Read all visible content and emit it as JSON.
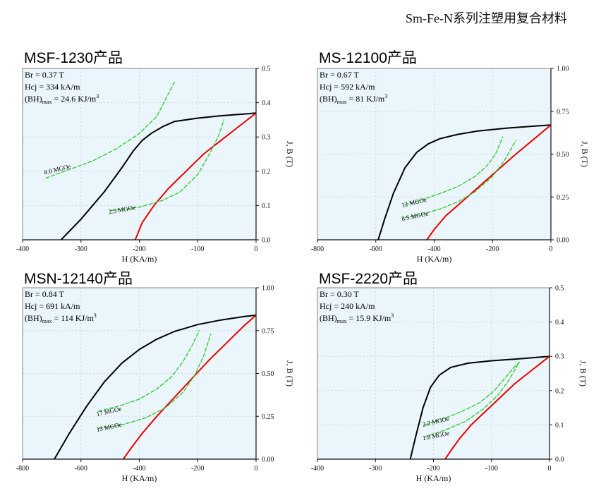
{
  "page_title": "Sm-Fe-N系列注塑用复合材料",
  "chart_data": [
    {
      "type": "line",
      "title": "MSF-1230产品",
      "xlabel": "H (KA/m)",
      "ylabel": "J, B (T)",
      "xlim": [
        -400,
        0
      ],
      "ylim": [
        0,
        0.5
      ],
      "xticks": [
        "-400",
        "-300",
        "-200",
        "-100",
        "0"
      ],
      "yticks": [
        "0.0",
        "0.1",
        "0.2",
        "0.3",
        "0.4",
        "0.5"
      ],
      "info": {
        "br": "Br = 0.37 T",
        "hcj": "Hcj = 334 kA/m",
        "bh_prefix": "(BH)",
        "bh_sub": "max",
        "bh_value": " = 24.6 KJ/m",
        "bh_sup": "3"
      },
      "series": [
        {
          "role": "J",
          "color": "#000000",
          "dashed": false,
          "x": [
            -334,
            -300,
            -260,
            -230,
            -210,
            -195,
            -180,
            -160,
            -140,
            -100,
            -60,
            -20,
            0
          ],
          "y": [
            0,
            0.06,
            0.14,
            0.21,
            0.26,
            0.29,
            0.31,
            0.33,
            0.345,
            0.355,
            0.362,
            0.367,
            0.37
          ]
        },
        {
          "role": "B",
          "color": "#ee0000",
          "dashed": false,
          "x": [
            -207,
            -195,
            -175,
            -150,
            -120,
            -90,
            -60,
            -30,
            0
          ],
          "y": [
            0,
            0.05,
            0.1,
            0.15,
            0.2,
            0.25,
            0.29,
            0.33,
            0.37
          ]
        },
        {
          "role": "iso",
          "label": "8.0 MGOe",
          "label_at": [
            -362,
            0.19
          ],
          "label_angle": -14,
          "color": "#33cc33",
          "dashed": true,
          "x": [
            -360,
            -320,
            -280,
            -240,
            -200,
            -170,
            -140
          ],
          "y": [
            0.18,
            0.205,
            0.23,
            0.265,
            0.31,
            0.36,
            0.46
          ]
        },
        {
          "role": "iso",
          "label": "2.5 MGOe",
          "label_at": [
            -252,
            0.075
          ],
          "label_angle": -10,
          "color": "#33cc33",
          "dashed": true,
          "x": [
            -250,
            -200,
            -160,
            -130,
            -100,
            -80,
            -65,
            -55
          ],
          "y": [
            0.085,
            0.095,
            0.115,
            0.14,
            0.19,
            0.25,
            0.3,
            0.35
          ]
        }
      ]
    },
    {
      "type": "line",
      "title": "MS-12100产品",
      "xlabel": "H (KA/m)",
      "ylabel": "J, B (T)",
      "xlim": [
        -800,
        0
      ],
      "ylim": [
        0,
        1.0
      ],
      "xticks": [
        "-800",
        "-600",
        "-400",
        "-200",
        "0"
      ],
      "yticks": [
        "0.00",
        "0.25",
        "0.50",
        "0.75",
        "1.00"
      ],
      "info": {
        "br": "Br = 0.67 T",
        "hcj": "Hcj = 592 kA/m",
        "bh_prefix": "(BH)",
        "bh_sub": "max",
        "bh_value": " = 81 KJ/m",
        "bh_sup": "3"
      },
      "series": [
        {
          "role": "J",
          "color": "#000000",
          "dashed": false,
          "x": [
            -592,
            -570,
            -540,
            -500,
            -460,
            -420,
            -380,
            -320,
            -250,
            -150,
            -50,
            0
          ],
          "y": [
            0,
            0.12,
            0.27,
            0.42,
            0.51,
            0.56,
            0.59,
            0.615,
            0.635,
            0.652,
            0.664,
            0.67
          ]
        },
        {
          "role": "B",
          "color": "#ee0000",
          "dashed": false,
          "x": [
            -425,
            -400,
            -360,
            -300,
            -240,
            -180,
            -120,
            -60,
            0
          ],
          "y": [
            0,
            0.06,
            0.14,
            0.23,
            0.32,
            0.41,
            0.5,
            0.585,
            0.67
          ]
        },
        {
          "role": "iso",
          "label": "12 MGOe",
          "label_at": [
            -510,
            0.19
          ],
          "label_angle": -13,
          "color": "#33cc33",
          "dashed": true,
          "x": [
            -500,
            -440,
            -380,
            -320,
            -260,
            -220,
            -190,
            -165
          ],
          "y": [
            0.205,
            0.235,
            0.27,
            0.31,
            0.37,
            0.43,
            0.5,
            0.6
          ]
        },
        {
          "role": "iso",
          "label": "8.5 MGOe",
          "label_at": [
            -510,
            0.11
          ],
          "label_angle": -12,
          "color": "#33cc33",
          "dashed": true,
          "x": [
            -500,
            -440,
            -380,
            -320,
            -260,
            -200,
            -160,
            -120
          ],
          "y": [
            0.13,
            0.15,
            0.18,
            0.22,
            0.28,
            0.37,
            0.46,
            0.58
          ]
        }
      ]
    },
    {
      "type": "line",
      "title": "MSN-12140产品",
      "xlabel": "H (KA/m)",
      "ylabel": "J, B (T)",
      "xlim": [
        -800,
        0
      ],
      "ylim": [
        0,
        1.0
      ],
      "xticks": [
        "-800",
        "-600",
        "-400",
        "-200",
        "0"
      ],
      "yticks": [
        "0.00",
        "0.25",
        "0.50",
        "0.75",
        "1.00"
      ],
      "info": {
        "br": "Br = 0.84 T",
        "hcj": "Hcj = 691 kA/m",
        "bh_prefix": "(BH)",
        "bh_sub": "max",
        "bh_value": " = 114 KJ/m",
        "bh_sup": "3"
      },
      "series": [
        {
          "role": "J",
          "color": "#000000",
          "dashed": false,
          "x": [
            -691,
            -640,
            -580,
            -520,
            -460,
            -400,
            -340,
            -280,
            -200,
            -120,
            -40,
            0
          ],
          "y": [
            0,
            0.15,
            0.31,
            0.45,
            0.56,
            0.64,
            0.7,
            0.745,
            0.785,
            0.812,
            0.832,
            0.84
          ]
        },
        {
          "role": "B",
          "color": "#ee0000",
          "dashed": false,
          "x": [
            -455,
            -430,
            -390,
            -340,
            -280,
            -220,
            -160,
            -100,
            -40,
            0
          ],
          "y": [
            0,
            0.06,
            0.15,
            0.25,
            0.36,
            0.47,
            0.58,
            0.68,
            0.78,
            0.84
          ]
        },
        {
          "role": "iso",
          "label": "17 MGOe",
          "label_at": [
            -545,
            0.25
          ],
          "label_angle": -13,
          "color": "#33cc33",
          "dashed": true,
          "x": [
            -540,
            -470,
            -400,
            -340,
            -290,
            -250,
            -220,
            -195
          ],
          "y": [
            0.28,
            0.31,
            0.35,
            0.41,
            0.48,
            0.57,
            0.66,
            0.75
          ]
        },
        {
          "role": "iso",
          "label": "13 MGOe",
          "label_at": [
            -545,
            0.16
          ],
          "label_angle": -12,
          "color": "#33cc33",
          "dashed": true,
          "x": [
            -540,
            -460,
            -380,
            -310,
            -250,
            -210,
            -180,
            -155
          ],
          "y": [
            0.18,
            0.2,
            0.24,
            0.3,
            0.39,
            0.49,
            0.6,
            0.73
          ]
        }
      ]
    },
    {
      "type": "line",
      "title": "MSF-2220产品",
      "xlabel": "H (KA/m)",
      "ylabel": "J, B (T)",
      "xlim": [
        -400,
        0
      ],
      "ylim": [
        0,
        0.5
      ],
      "xticks": [
        "-400",
        "-300",
        "-200",
        "-100",
        "0"
      ],
      "yticks": [
        "0.0",
        "0.1",
        "0.2",
        "0.3",
        "0.4",
        "0.5"
      ],
      "info": {
        "br": "Br = 0.30 T",
        "hcj": "Hcj = 240 kA/m",
        "bh_prefix": "(BH)",
        "bh_sub": "max",
        "bh_value": " = 15.9 KJ/m",
        "bh_sup": "3"
      },
      "series": [
        {
          "role": "J",
          "color": "#000000",
          "dashed": false,
          "x": [
            -240,
            -230,
            -218,
            -205,
            -190,
            -170,
            -140,
            -100,
            -50,
            0
          ],
          "y": [
            0,
            0.07,
            0.15,
            0.21,
            0.245,
            0.268,
            0.28,
            0.287,
            0.293,
            0.3
          ]
        },
        {
          "role": "B",
          "color": "#ee0000",
          "dashed": false,
          "x": [
            -180,
            -170,
            -155,
            -135,
            -110,
            -85,
            -60,
            -30,
            0
          ],
          "y": [
            0,
            0.025,
            0.06,
            0.1,
            0.14,
            0.18,
            0.22,
            0.26,
            0.3
          ]
        },
        {
          "role": "iso",
          "label": "2.2 MGOe",
          "label_at": [
            -218,
            0.095
          ],
          "label_angle": -13,
          "color": "#33cc33",
          "dashed": true,
          "x": [
            -215,
            -180,
            -150,
            -120,
            -95,
            -75,
            -60,
            -50
          ],
          "y": [
            0.1,
            0.12,
            0.14,
            0.165,
            0.2,
            0.24,
            0.27,
            0.285
          ]
        },
        {
          "role": "iso",
          "label": "1.8 MGOe",
          "label_at": [
            -218,
            0.055
          ],
          "label_angle": -11,
          "color": "#33cc33",
          "dashed": true,
          "x": [
            -215,
            -180,
            -145,
            -115,
            -90,
            -70,
            -55
          ],
          "y": [
            0.065,
            0.085,
            0.11,
            0.145,
            0.185,
            0.23,
            0.275
          ]
        }
      ]
    }
  ]
}
